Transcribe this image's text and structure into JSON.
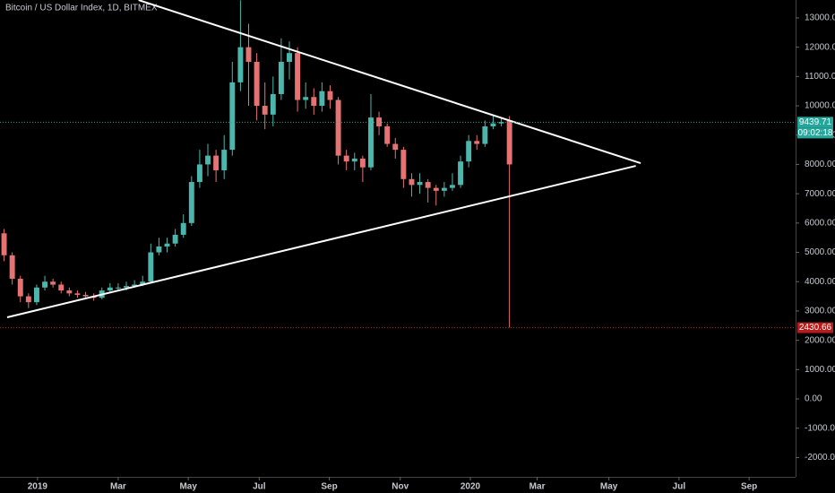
{
  "chart_data": {
    "type": "candlestick",
    "title": "Bitcoin / US Dollar Index, 1D, BITMEX",
    "open": [
      5650,
      4900,
      4100,
      3500,
      3300,
      3800,
      4000,
      3900,
      3700,
      3600,
      3550,
      3500,
      3450,
      3700,
      3800,
      3800,
      3850,
      3900,
      4000,
      5000,
      5200,
      5300,
      5600,
      6000,
      7400,
      8000,
      8300,
      7800,
      8500,
      10800,
      12000,
      11500,
      10000,
      9700,
      10400,
      11500,
      11800,
      10200,
      10300,
      10000,
      10500,
      10200,
      8300,
      8100,
      8200,
      7900,
      9600,
      9300,
      8700,
      8500,
      7500,
      7300,
      7400,
      7200,
      7100,
      7200,
      7300,
      8100,
      8800,
      8700,
      9300,
      9400,
      9500
    ],
    "high": [
      5800,
      5000,
      4200,
      3600,
      3900,
      4200,
      4100,
      4000,
      3800,
      3700,
      3650,
      3600,
      3800,
      3950,
      3950,
      4000,
      4050,
      4200,
      5300,
      5500,
      5500,
      5800,
      6300,
      7600,
      8500,
      8700,
      8500,
      9000,
      11500,
      13600,
      12800,
      11800,
      10800,
      11000,
      12300,
      12200,
      12000,
      10800,
      10600,
      10800,
      10700,
      10300,
      8500,
      8400,
      8300,
      10400,
      9800,
      9400,
      8900,
      8600,
      7700,
      7700,
      7500,
      7300,
      7400,
      7700,
      8300,
      9000,
      9000,
      9500,
      9700,
      9600,
      9650
    ],
    "low": [
      4700,
      3900,
      3300,
      3100,
      3200,
      3700,
      3800,
      3600,
      3500,
      3450,
      3400,
      3350,
      3400,
      3650,
      3700,
      3700,
      3800,
      3850,
      3950,
      4900,
      5000,
      5200,
      5500,
      5900,
      7200,
      7600,
      7400,
      7500,
      8300,
      10500,
      10000,
      9500,
      9200,
      9300,
      10200,
      10900,
      9800,
      9900,
      9700,
      9800,
      9900,
      8000,
      7800,
      7800,
      7400,
      7800,
      9000,
      8600,
      8200,
      7200,
      6900,
      7000,
      6700,
      6600,
      6900,
      7100,
      7200,
      7900,
      8500,
      8600,
      9200,
      9300,
      2430.66
    ],
    "close": [
      4900,
      4100,
      3500,
      3300,
      3800,
      4000,
      3900,
      3700,
      3600,
      3550,
      3500,
      3450,
      3700,
      3800,
      3800,
      3850,
      3900,
      4000,
      5000,
      5200,
      5300,
      5600,
      6000,
      7400,
      8000,
      8300,
      7800,
      8500,
      10800,
      12000,
      11500,
      10000,
      9700,
      10400,
      11500,
      11800,
      10200,
      10300,
      10000,
      10500,
      10200,
      8300,
      8100,
      8200,
      7900,
      9600,
      9300,
      8700,
      8500,
      7500,
      7300,
      7400,
      7200,
      7100,
      7200,
      7300,
      8100,
      8800,
      8700,
      9300,
      9400,
      9450,
      8000
    ],
    "up_color": "#4db6ac",
    "down_color": "#e57373",
    "xlim": [
      -0.5,
      97.1
    ],
    "xticks": [
      {
        "value": 4.1,
        "label": "2019"
      },
      {
        "value": 14.0,
        "label": "Mar"
      },
      {
        "value": 22.6,
        "label": "May"
      },
      {
        "value": 31.3,
        "label": "Jul"
      },
      {
        "value": 39.9,
        "label": "Sep"
      },
      {
        "value": 48.6,
        "label": "Nov"
      },
      {
        "value": 57.2,
        "label": "2020"
      },
      {
        "value": 65.4,
        "label": "Mar"
      },
      {
        "value": 74.2,
        "label": "May"
      },
      {
        "value": 82.8,
        "label": "Jul"
      },
      {
        "value": 91.4,
        "label": "Sep"
      }
    ],
    "ylim": [
      -2660,
      13610
    ],
    "yticks": [
      {
        "value": 13000,
        "label": "13000.00"
      },
      {
        "value": 12000,
        "label": "12000.00"
      },
      {
        "value": 11000,
        "label": "11000.00"
      },
      {
        "value": 10000,
        "label": "10000.00"
      },
      {
        "value": 9000,
        "label": "9000.00"
      },
      {
        "value": 8000,
        "label": "8000.00"
      },
      {
        "value": 7000,
        "label": "7000.00"
      },
      {
        "value": 6000,
        "label": "6000.00"
      },
      {
        "value": 5000,
        "label": "5000.00"
      },
      {
        "value": 4000,
        "label": "4000.00"
      },
      {
        "value": 3000,
        "label": "3000.00"
      },
      {
        "value": 2000,
        "label": "2000.00"
      },
      {
        "value": 1000,
        "label": "1000.00"
      },
      {
        "value": 0,
        "label": "0.00"
      },
      {
        "value": -1000,
        "label": "-1000.00"
      },
      {
        "value": -2000,
        "label": "-2000.00"
      }
    ],
    "price_lines": [
      {
        "value": 9439.71,
        "color": "#26a69a",
        "countdown": "09:02:18"
      },
      {
        "value": 2430.66,
        "color": "#b71c1c"
      }
    ],
    "trendlines": [
      {
        "x": [
          16.5,
          78.1
        ],
        "y": [
          13608,
          8043
        ],
        "color": "#ffffff"
      },
      {
        "x": [
          0.38,
          77.5
        ],
        "y": [
          2783,
          7951
        ],
        "color": "#ffffff"
      }
    ]
  }
}
